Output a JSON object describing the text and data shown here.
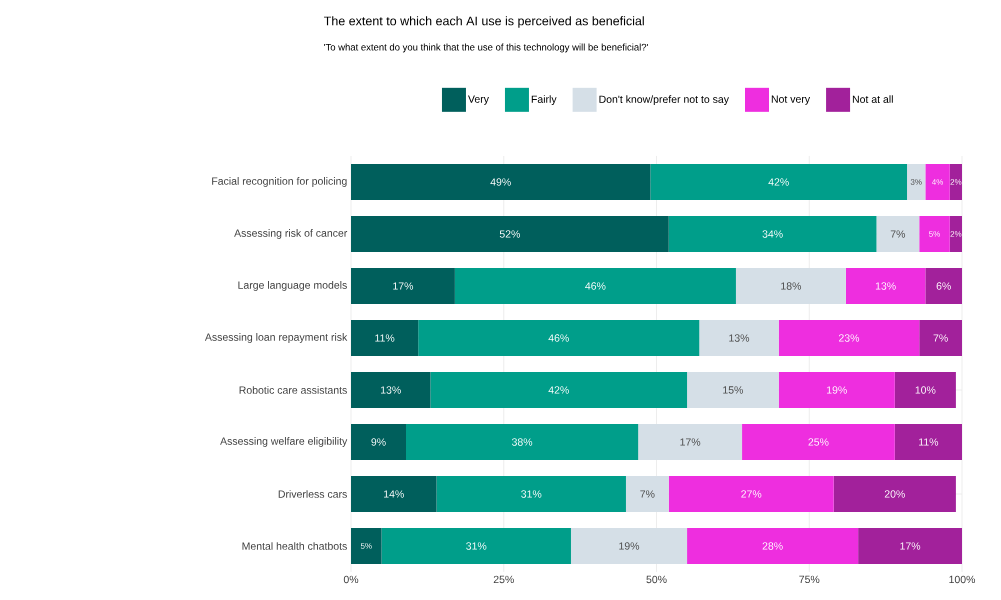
{
  "chart_data": {
    "type": "bar",
    "orientation": "horizontal",
    "stacked": true,
    "title": "The extent to which each AI use is perceived as beneficial",
    "subtitle": "'To what extent do you think that the use of this technology will be beneficial?'",
    "categories": [
      "Facial recognition for policing",
      "Assessing risk of cancer",
      "Large language models",
      "Assessing loan repayment risk",
      "Robotic care assistants",
      "Assessing welfare eligibility",
      "Driverless cars",
      "Mental health chatbots"
    ],
    "series": [
      {
        "name": "Very",
        "color": "#005f5c",
        "values": [
          49,
          52,
          17,
          11,
          13,
          9,
          14,
          5
        ],
        "value_labels": [
          "49%",
          "52%",
          "17%",
          "11%",
          "13%",
          "9%",
          "14%",
          "5%"
        ]
      },
      {
        "name": "Fairly",
        "color": "#009e8a",
        "values": [
          42,
          34,
          46,
          46,
          42,
          38,
          31,
          31
        ],
        "value_labels": [
          "42%",
          "34%",
          "46%",
          "46%",
          "42%",
          "38%",
          "31%",
          "31%"
        ]
      },
      {
        "name": "Don't know/prefer not to say",
        "color": "#d5dfe7",
        "values": [
          3,
          7,
          18,
          13,
          15,
          17,
          7,
          19
        ],
        "value_labels": [
          "3%",
          "7%",
          "18%",
          "13%",
          "15%",
          "17%",
          "7%",
          "19%"
        ]
      },
      {
        "name": "Not very",
        "color": "#ee2edf",
        "values": [
          4,
          5,
          13,
          23,
          19,
          25,
          27,
          28
        ],
        "value_labels": [
          "4%",
          "5%",
          "13%",
          "23%",
          "19%",
          "25%",
          "27%",
          "28%"
        ]
      },
      {
        "name": "Not at all",
        "color": "#a2219b",
        "values": [
          2,
          2,
          6,
          7,
          10,
          11,
          20,
          17
        ],
        "value_labels": [
          "2%",
          "2%",
          "6%",
          "7%",
          "10%",
          "11%",
          "20%",
          "17%"
        ]
      }
    ],
    "xlim": [
      0,
      100
    ],
    "xticks": [
      {
        "value": 0,
        "label": "0%"
      },
      {
        "value": 25,
        "label": "25%"
      },
      {
        "value": 50,
        "label": "50%"
      },
      {
        "value": 75,
        "label": "75%"
      },
      {
        "value": 100,
        "label": "100%"
      }
    ],
    "grid": true,
    "legend": "top"
  }
}
